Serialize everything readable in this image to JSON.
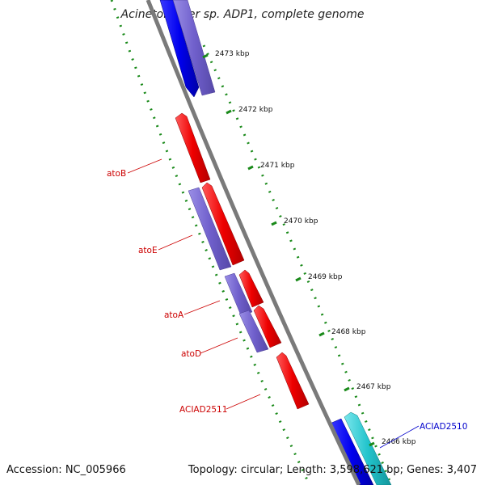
{
  "title": "Acinetobacter sp. ADP1, complete genome",
  "footer": {
    "accession": "Accession: NC_005966",
    "summary": "Topology: circular; Length: 3,598,621 bp; Genes: 3,407"
  },
  "scale": {
    "unit": "kbp",
    "ticks": [
      "2473 kbp",
      "2472 kbp",
      "2471 kbp",
      "2470 kbp",
      "2469 kbp",
      "2468 kbp",
      "2467 kbp",
      "2466 kbp"
    ]
  },
  "genes": [
    {
      "name": "atoB",
      "color": "#cc0000"
    },
    {
      "name": "atoE",
      "color": "#cc0000"
    },
    {
      "name": "atoA",
      "color": "#cc0000"
    },
    {
      "name": "atoD",
      "color": "#cc0000"
    },
    {
      "name": "ACIAD2511",
      "color": "#cc0000"
    },
    {
      "name": "ACIAD2510",
      "color": "#0000cc"
    }
  ],
  "colors": {
    "backbone": "#7a7a7a",
    "red_feature": "#ee0000",
    "blue_feature": "#0000ee",
    "purple_feature": "#7060cc",
    "cyan_feature": "#22c4cc",
    "dot_track": "#1a8a1a"
  }
}
